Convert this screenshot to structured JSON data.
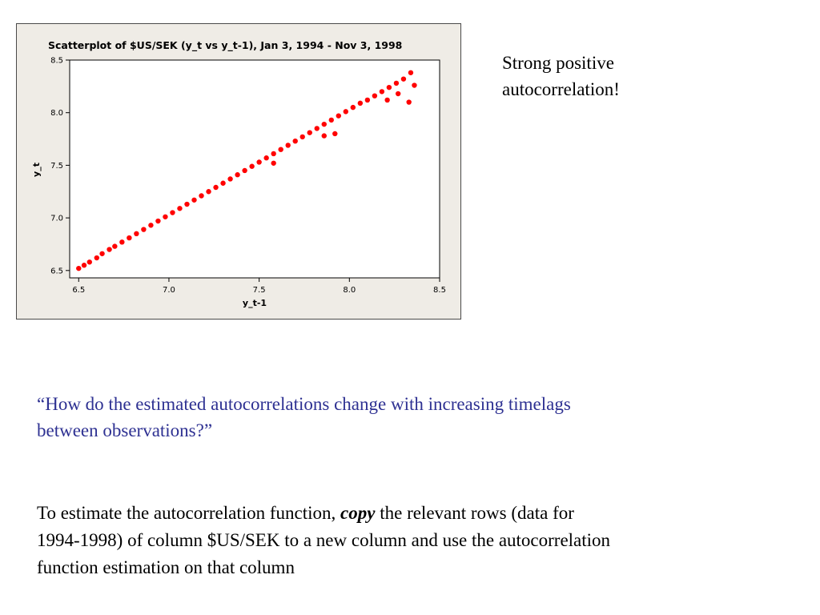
{
  "chart_data": {
    "type": "scatter",
    "title": "Scatterplot of $US/SEK (y_t  vs y_t-1), Jan 3, 1994 - Nov 3, 1998",
    "xlabel": "y_t-1",
    "ylabel": "y_t",
    "xlim": [
      6.45,
      8.5
    ],
    "ylim": [
      6.43,
      8.5
    ],
    "x_ticks": [
      "6.5",
      "7.0",
      "7.5",
      "8.0",
      "8.5"
    ],
    "y_ticks": [
      "6.5",
      "7.0",
      "7.5",
      "8.0",
      "8.5"
    ],
    "grid": false,
    "marker_color": "#ff0000",
    "series": [
      {
        "x": [
          6.5,
          6.53,
          6.56,
          6.6,
          6.63,
          6.67,
          6.7,
          6.74,
          6.78,
          6.82,
          6.86,
          6.9,
          6.94,
          6.98,
          7.02,
          7.06,
          7.1,
          7.14,
          7.18,
          7.22,
          7.26,
          7.3,
          7.34,
          7.38,
          7.42,
          7.46,
          7.5,
          7.54,
          7.58,
          7.62,
          7.66,
          7.7,
          7.74,
          7.78,
          7.82,
          7.86,
          7.9,
          7.94,
          7.98,
          8.02,
          8.06,
          8.1,
          8.14,
          8.18,
          8.22,
          8.26,
          8.3,
          8.34,
          8.36,
          8.33,
          8.27,
          8.21,
          7.86,
          7.92,
          7.58
        ],
        "y": [
          6.52,
          6.55,
          6.58,
          6.62,
          6.66,
          6.7,
          6.73,
          6.77,
          6.81,
          6.85,
          6.89,
          6.93,
          6.97,
          7.01,
          7.05,
          7.09,
          7.13,
          7.17,
          7.21,
          7.25,
          7.29,
          7.33,
          7.37,
          7.41,
          7.45,
          7.49,
          7.53,
          7.57,
          7.61,
          7.65,
          7.69,
          7.73,
          7.77,
          7.81,
          7.85,
          7.89,
          7.93,
          7.97,
          8.01,
          8.05,
          8.09,
          8.12,
          8.16,
          8.2,
          8.24,
          8.28,
          8.32,
          8.38,
          8.26,
          8.1,
          8.18,
          8.12,
          7.78,
          7.8,
          7.52
        ]
      }
    ]
  },
  "note": {
    "line1": "Strong positive",
    "line2": "autocorrelation!"
  },
  "question": {
    "line1": "“How do the estimated autocorrelations change with increasing timelags",
    "line2": "between observations?”"
  },
  "instructions": {
    "part1": "To estimate the autocorrelation function, ",
    "emphasis": "copy",
    "part2": " the relevant rows (data for",
    "line2": "1994-1998) of column $US/SEK to a new column and use the autocorrelation",
    "line3": "function estimation on that column"
  }
}
